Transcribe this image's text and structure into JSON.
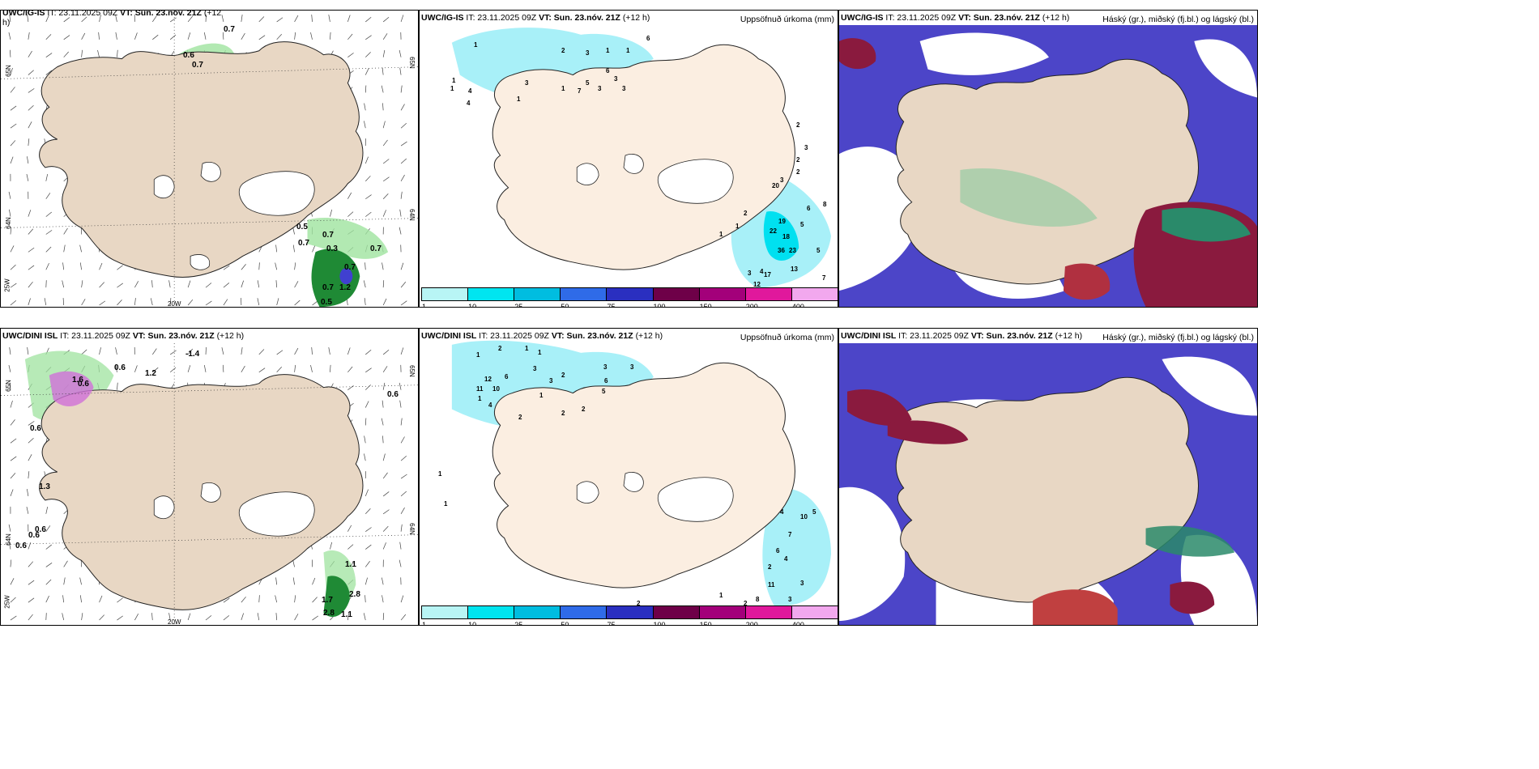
{
  "panels": {
    "p1": {
      "title_model": "UWC/IG-IS",
      "title_it": "IT: 23.11.2025 09Z",
      "title_vt": "VT: Sun. 23.nóv. 21Z",
      "title_lead": "(+12",
      "title_lead2": "h)",
      "lat_labels": [
        "65N",
        "64N"
      ],
      "lat_labels2": [
        "65N",
        "64N"
      ],
      "lon_label_left": "25W",
      "lon_label_bottom": "20W",
      "values": [
        "0.7",
        "0.6",
        "0.7",
        "0.5",
        "0.7",
        "0.7",
        "0.3",
        "0.7",
        "0.7",
        "0.7",
        "0.5",
        "1.2"
      ]
    },
    "p2": {
      "title_model": "UWC/IG-IS",
      "title_it": "IT: 23.11.2025 09Z",
      "title_vt": "VT: Sun. 23.nóv. 21Z",
      "title_lead": "(+12 h)",
      "right_title": "Uppsöfnuð úrkoma (mm)",
      "values": [
        "6",
        "2",
        "3",
        "1",
        "1",
        "1",
        "1",
        "4",
        "6",
        "3",
        "3",
        "3",
        "7",
        "5",
        "1",
        "3",
        "1",
        "4",
        "1",
        "2",
        "3",
        "2",
        "3",
        "2",
        "20",
        "6",
        "8",
        "19",
        "22",
        "18",
        "5",
        "36",
        "23",
        "5",
        "13",
        "17",
        "4",
        "3",
        "12",
        "7",
        "1",
        "1",
        "2"
      ]
    },
    "p3": {
      "title_model": "UWC/IG-IS",
      "title_it": "IT: 23.11.2025 09Z",
      "title_vt": "VT: Sun. 23.nóv. 21Z",
      "title_lead": "(+12 h)",
      "right_title": "Háský (gr.), miðský (fj.bl.) og lágský (bl.)"
    },
    "p4": {
      "title_model": "UWC/DINI ISL",
      "title_it": "IT: 23.11.2025 09Z",
      "title_vt": "VT: Sun. 23.nóv. 21Z",
      "title_lead": "(+12 h)",
      "lat_labels": [
        "65N",
        "64N"
      ],
      "lat_labels2": [
        "65N",
        "64N"
      ],
      "lon_label_left": "25W",
      "lon_label_bottom": "20W",
      "values": [
        "-1.4",
        "0.6",
        "1.2",
        "1.6",
        "0.6",
        "0.6",
        "0.6",
        "1.3",
        "0.6",
        "0.6",
        "0.6",
        "1.1",
        "1.7",
        "2.8",
        "2.8",
        "1.1"
      ]
    },
    "p5": {
      "title_model": "UWC/DINI ISL",
      "title_it": "IT: 23.11.2025 09Z",
      "title_vt": "VT: Sun. 23.nóv. 21Z",
      "title_lead": "(+12 h)",
      "right_title": "Uppsöfnuð úrkoma (mm)",
      "values": [
        "1",
        "1",
        "2",
        "1",
        "3",
        "2",
        "3",
        "3",
        "6",
        "6",
        "12",
        "10",
        "11",
        "5",
        "1",
        "3",
        "1",
        "4",
        "2",
        "2",
        "2",
        "1",
        "1",
        "4",
        "10",
        "5",
        "7",
        "6",
        "4",
        "2",
        "11",
        "3",
        "3",
        "8",
        "2",
        "1",
        "2"
      ]
    },
    "p6": {
      "title_model": "UWC/DINI ISL",
      "title_it": "IT: 23.11.2025 09Z",
      "title_vt": "VT: Sun. 23.nóv. 21Z",
      "title_lead": "(+12 h)",
      "right_title": "Háský (gr.), miðský (fj.bl.) og lágský (bl.)"
    }
  },
  "colorbar": {
    "ticks": [
      "1",
      "10",
      "25",
      "50",
      "75",
      "100",
      "150",
      "200",
      "400"
    ],
    "colors": [
      "#b8f5f5",
      "#00e5f0",
      "#00bde0",
      "#2f6be8",
      "#2a2fc0",
      "#6e0048",
      "#a3007a",
      "#e0189c",
      "#f2a8ee"
    ]
  },
  "colors": {
    "land": "#e8d7c4",
    "land2": "#fbeee1",
    "precip_light": "#a8f0f8",
    "precip_mid": "#00e0f0",
    "cloud_mid": "#4c45c8",
    "cloud_low_green": "#7fc99a",
    "cloud_high": "#8a1a3e"
  }
}
